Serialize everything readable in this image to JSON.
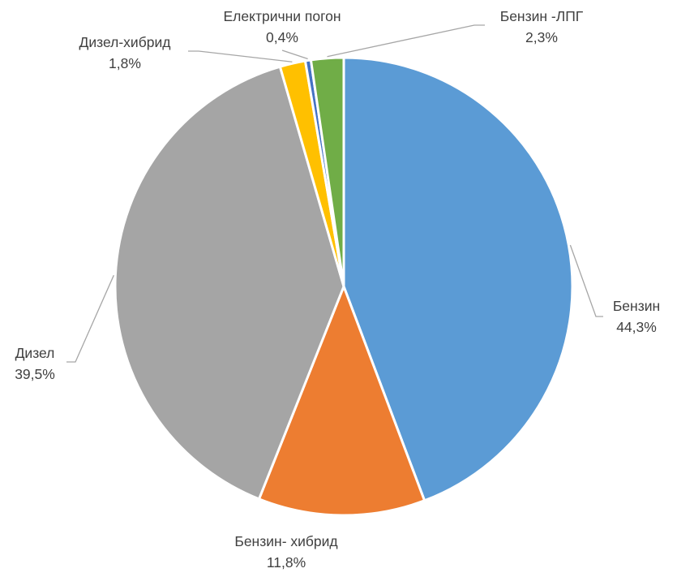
{
  "chart_data": {
    "type": "pie",
    "title": "",
    "slices": [
      {
        "label": "Бензин",
        "value": 44.3,
        "value_label": "44,3%",
        "color": "#5b9bd5"
      },
      {
        "label": "Бензин- хибрид",
        "value": 11.8,
        "value_label": "11,8%",
        "color": "#ed7d31"
      },
      {
        "label": "Дизел",
        "value": 39.5,
        "value_label": "39,5%",
        "color": "#a5a5a5"
      },
      {
        "label": "Дизел-хибрид",
        "value": 1.8,
        "value_label": "1,8%",
        "color": "#ffc000"
      },
      {
        "label": "Електрични погон",
        "value": 0.4,
        "value_label": "0,4%",
        "color": "#4472c4"
      },
      {
        "label": "Бензин -ЛПГ",
        "value": 2.3,
        "value_label": "2,3%",
        "color": "#70ad47"
      }
    ],
    "start_angle": "12 o'clock",
    "direction": "clockwise",
    "legend": "none",
    "data_labels": "outside with leader lines"
  }
}
